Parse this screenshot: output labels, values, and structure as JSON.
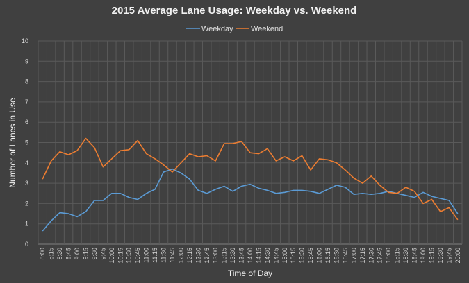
{
  "chart_data": {
    "type": "line",
    "title": "2015 Average Lane Usage: Weekday vs. Weekend",
    "xlabel": "Time of Day",
    "ylabel": "Number of Lanes in Use",
    "ylim": [
      0,
      10
    ],
    "yticks": [
      0,
      1,
      2,
      3,
      4,
      5,
      6,
      7,
      8,
      9,
      10
    ],
    "grid": true,
    "legend_position": "top",
    "categories": [
      "8:00",
      "8:15",
      "8:30",
      "8:45",
      "9:00",
      "9:15",
      "9:30",
      "9:45",
      "10:00",
      "10:15",
      "10:30",
      "10:45",
      "11:00",
      "11:15",
      "11:30",
      "11:45",
      "12:00",
      "12:15",
      "12:30",
      "12:45",
      "13:00",
      "13:15",
      "13:30",
      "13:45",
      "14:00",
      "14:15",
      "14:30",
      "14:45",
      "15:00",
      "15:15",
      "15:30",
      "15:45",
      "16:00",
      "16:15",
      "16:30",
      "16:45",
      "17:00",
      "17:15",
      "17:30",
      "17:45",
      "18:00",
      "18:15",
      "18:30",
      "18:45",
      "19:00",
      "19:15",
      "19:30",
      "19:45",
      "20:00"
    ],
    "series": [
      {
        "name": "Weekday",
        "color": "#5b9bd5",
        "values": [
          0.65,
          1.15,
          1.55,
          1.5,
          1.35,
          1.6,
          2.15,
          2.15,
          2.5,
          2.5,
          2.3,
          2.2,
          2.5,
          2.7,
          3.55,
          3.7,
          3.5,
          3.2,
          2.65,
          2.5,
          2.7,
          2.85,
          2.6,
          2.85,
          2.95,
          2.75,
          2.65,
          2.5,
          2.55,
          2.65,
          2.65,
          2.6,
          2.5,
          2.7,
          2.9,
          2.8,
          2.45,
          2.5,
          2.45,
          2.5,
          2.6,
          2.5,
          2.4,
          2.3,
          2.55,
          2.35,
          2.25,
          2.15,
          1.5
        ]
      },
      {
        "name": "Weekend",
        "color": "#ed7d31",
        "values": [
          3.2,
          4.1,
          4.55,
          4.4,
          4.6,
          5.2,
          4.75,
          3.8,
          4.2,
          4.6,
          4.65,
          5.1,
          4.45,
          4.2,
          3.9,
          3.55,
          4.0,
          4.45,
          4.3,
          4.35,
          4.1,
          4.95,
          4.95,
          5.05,
          4.5,
          4.45,
          4.7,
          4.1,
          4.3,
          4.1,
          4.35,
          3.65,
          4.2,
          4.15,
          4.0,
          3.65,
          3.25,
          3.0,
          3.35,
          2.9,
          2.55,
          2.5,
          2.8,
          2.6,
          2.0,
          2.2,
          1.6,
          1.8,
          1.2
        ]
      }
    ]
  }
}
